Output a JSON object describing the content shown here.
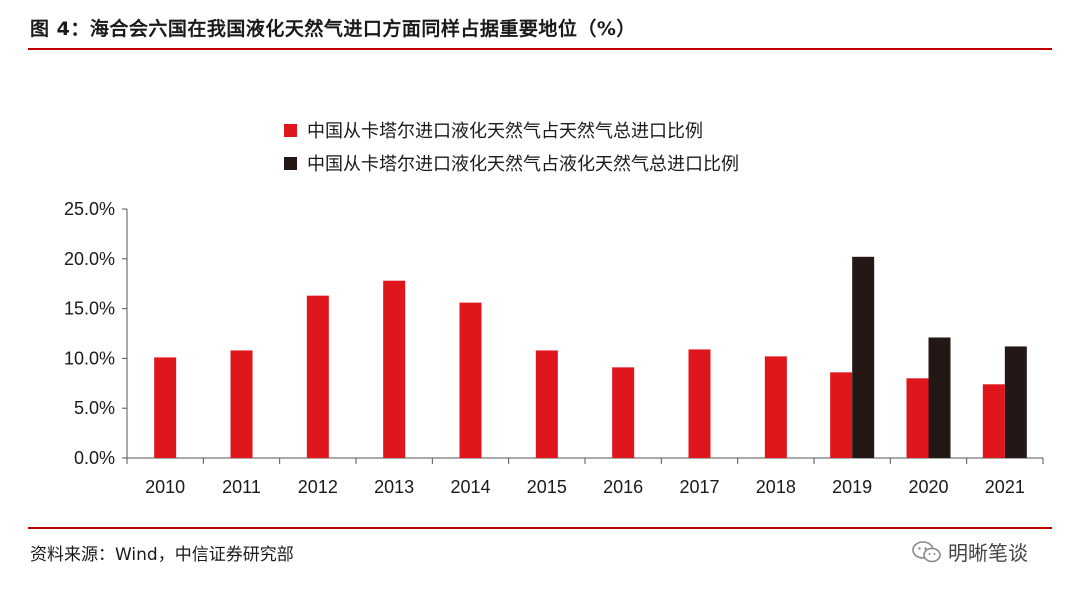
{
  "figure_title": "图 4：海合会六国在我国液化天然气进口方面同样占据重要地位（%）",
  "source_note": "资料来源：Wind，中信证券研究部",
  "brand_text": "明晰笔谈",
  "colors": {
    "series1": "#e0161d",
    "series2": "#231815",
    "rule": "#c00000"
  },
  "chart_data": {
    "type": "bar",
    "categories": [
      "2010",
      "2011",
      "2012",
      "2013",
      "2014",
      "2015",
      "2016",
      "2017",
      "2018",
      "2019",
      "2020",
      "2021"
    ],
    "series": [
      {
        "name": "中国从卡塔尔进口液化天然气占天然气总进口比例",
        "values": [
          10.1,
          10.8,
          16.3,
          17.8,
          15.6,
          10.8,
          9.1,
          10.9,
          10.2,
          8.6,
          8.0,
          7.4
        ]
      },
      {
        "name": "中国从卡塔尔进口液化天然气占液化天然气总进口比例",
        "values": [
          null,
          null,
          null,
          null,
          null,
          null,
          null,
          null,
          null,
          20.2,
          12.1,
          11.2
        ]
      }
    ],
    "ylim": [
      0,
      25
    ],
    "yticks": [
      "0.0%",
      "5.0%",
      "10.0%",
      "15.0%",
      "20.0%",
      "25.0%"
    ],
    "legend_position": "top",
    "grid": false
  }
}
